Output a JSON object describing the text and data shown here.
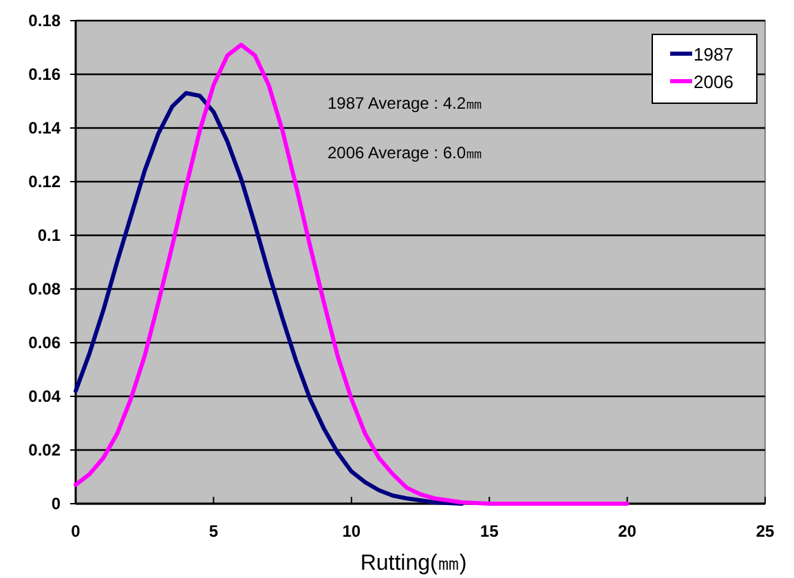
{
  "chart_data": {
    "type": "line",
    "xlabel": "Rutting(㎜)",
    "annotations": [
      "1987 Average : 4.2㎜",
      "2006 Average : 6.0㎜"
    ],
    "series": [
      {
        "name": "1987",
        "color": "#000080",
        "x": [
          0,
          0.5,
          1,
          1.5,
          2,
          2.5,
          3,
          3.5,
          4,
          4.5,
          5,
          5.5,
          6,
          6.5,
          7,
          7.5,
          8,
          8.5,
          9,
          9.5,
          10,
          10.5,
          11,
          11.5,
          12,
          13,
          14
        ],
        "values": [
          0.042,
          0.056,
          0.072,
          0.09,
          0.107,
          0.124,
          0.138,
          0.148,
          0.153,
          0.152,
          0.146,
          0.135,
          0.121,
          0.104,
          0.086,
          0.069,
          0.053,
          0.039,
          0.028,
          0.019,
          0.012,
          0.008,
          0.005,
          0.003,
          0.002,
          0.0005,
          0
        ]
      },
      {
        "name": "2006",
        "color": "#ff00ff",
        "x": [
          0,
          0.5,
          1,
          1.5,
          2,
          2.5,
          3,
          3.5,
          4,
          4.5,
          5,
          5.5,
          6,
          6.5,
          7,
          7.5,
          8,
          8.5,
          9,
          9.5,
          10,
          10.5,
          11,
          11.5,
          12,
          12.5,
          13,
          14,
          15,
          20
        ],
        "values": [
          0.007,
          0.011,
          0.017,
          0.026,
          0.039,
          0.055,
          0.075,
          0.096,
          0.118,
          0.139,
          0.156,
          0.167,
          0.171,
          0.167,
          0.156,
          0.139,
          0.118,
          0.096,
          0.075,
          0.055,
          0.039,
          0.026,
          0.017,
          0.011,
          0.006,
          0.0035,
          0.002,
          0.0005,
          0,
          0
        ]
      }
    ],
    "xlim": [
      0,
      25
    ],
    "xticks": [
      0,
      5,
      10,
      15,
      20,
      25
    ],
    "ylim": [
      0,
      0.18
    ],
    "yticks": [
      0,
      0.02,
      0.04,
      0.06,
      0.08,
      0.1,
      0.12,
      0.14,
      0.16,
      0.18
    ],
    "grid": "y",
    "legend": "top right",
    "marker": "none",
    "line_style": "solid"
  }
}
